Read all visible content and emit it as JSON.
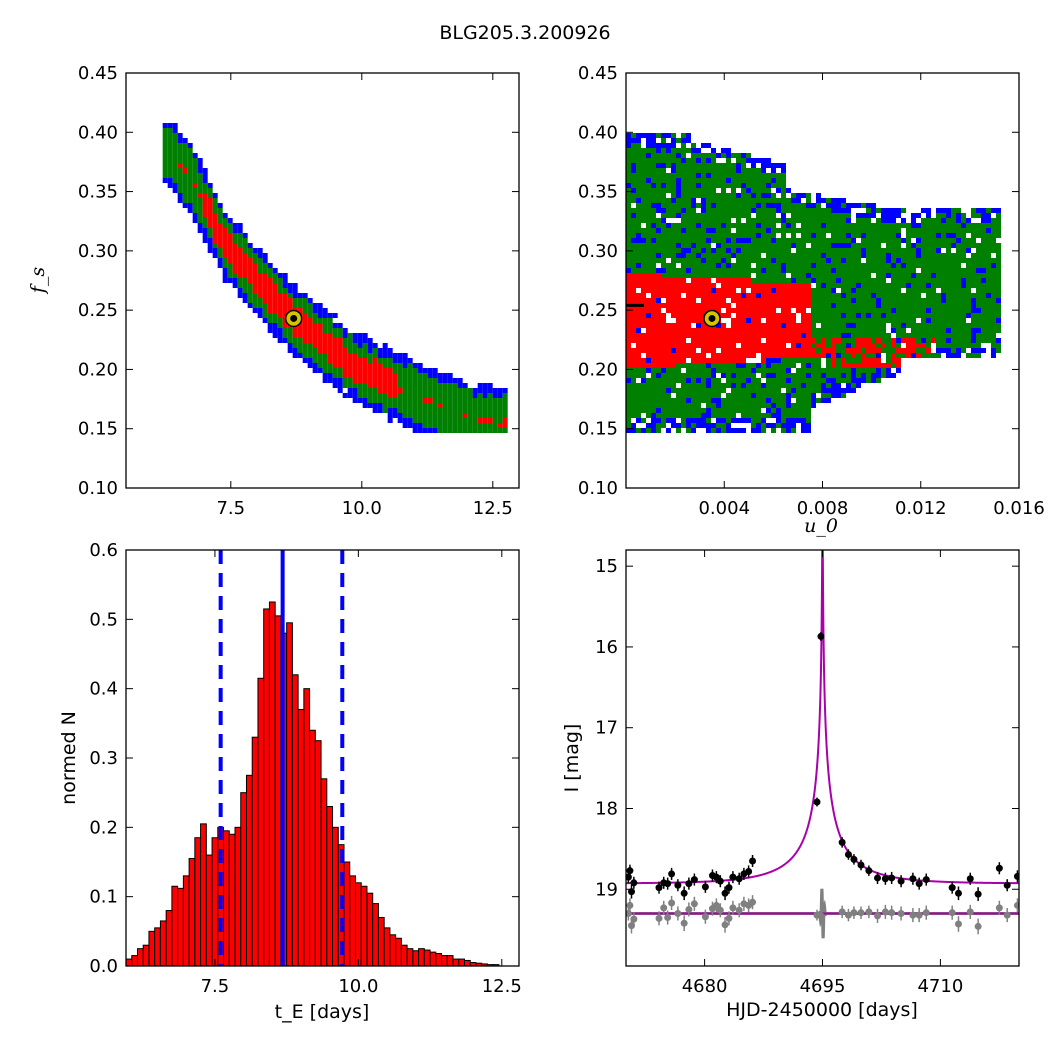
{
  "figure": {
    "title": "BLG205.3.200926"
  },
  "chart_data": [
    {
      "type": "heatmap",
      "panel": "top-left",
      "xlabel": "",
      "ylabel": "f_s",
      "xlim": [
        5.5,
        13.0
      ],
      "ylim": [
        0.1,
        0.45
      ],
      "xticks": [
        7.5,
        10.0,
        12.5
      ],
      "xtick_labels": [
        "7.5",
        "10.0",
        "12.5"
      ],
      "yticks": [
        0.1,
        0.15,
        0.2,
        0.25,
        0.3,
        0.35,
        0.4,
        0.45
      ],
      "ytick_labels": [
        "0.10",
        "0.15",
        "0.20",
        "0.25",
        "0.30",
        "0.35",
        "0.40",
        "0.45"
      ],
      "confidence_colors": {
        "1sigma": "#ff0000",
        "2sigma": "#008000",
        "3sigma": "#0000ff"
      },
      "ridge": [
        [
          6.3,
          0.385
        ],
        [
          6.8,
          0.355
        ],
        [
          7.3,
          0.31
        ],
        [
          7.8,
          0.285
        ],
        [
          8.3,
          0.26
        ],
        [
          8.7,
          0.243
        ],
        [
          9.2,
          0.225
        ],
        [
          9.8,
          0.205
        ],
        [
          10.5,
          0.19
        ],
        [
          11.2,
          0.175
        ],
        [
          12.0,
          0.162
        ],
        [
          12.6,
          0.157
        ]
      ],
      "best_fit": {
        "x": 8.7,
        "y": 0.243
      },
      "grid": false
    },
    {
      "type": "heatmap",
      "panel": "top-right",
      "xlabel": "u_0",
      "ylabel": "",
      "xlim": [
        0.0,
        0.016
      ],
      "ylim": [
        0.1,
        0.45
      ],
      "xticks": [
        0.004,
        0.008,
        0.012,
        0.016
      ],
      "xtick_labels": [
        "0.004",
        "0.008",
        "0.012",
        "0.016"
      ],
      "yticks": [
        0.1,
        0.15,
        0.2,
        0.25,
        0.3,
        0.35,
        0.4,
        0.45
      ],
      "ytick_labels": [
        "0.10",
        "0.15",
        "0.20",
        "0.25",
        "0.30",
        "0.35",
        "0.40",
        "0.45"
      ],
      "confidence_colors": {
        "1sigma": "#ff0000",
        "2sigma": "#008000",
        "3sigma": "#0000ff"
      },
      "best_fit": {
        "x": 0.0035,
        "y": 0.243
      },
      "grid": false
    },
    {
      "type": "bar",
      "panel": "bottom-left",
      "xlabel": "t_E [days]",
      "ylabel": "normed N",
      "xlim": [
        5.95,
        12.8
      ],
      "ylim": [
        0.0,
        0.6
      ],
      "xticks": [
        7.5,
        10.0,
        12.5
      ],
      "xtick_labels": [
        "7.5",
        "10.0",
        "12.5"
      ],
      "yticks": [
        0.0,
        0.1,
        0.2,
        0.3,
        0.4,
        0.5,
        0.6
      ],
      "ytick_labels": [
        "0.0",
        "0.1",
        "0.2",
        "0.3",
        "0.4",
        "0.5",
        "0.6"
      ],
      "bar_color": "#ff0000",
      "bin_start": 5.95,
      "bin_width": 0.1,
      "values": [
        0.01,
        0.015,
        0.025,
        0.03,
        0.05,
        0.055,
        0.065,
        0.08,
        0.115,
        0.112,
        0.13,
        0.155,
        0.185,
        0.205,
        0.16,
        0.185,
        0.2,
        0.195,
        0.19,
        0.2,
        0.25,
        0.275,
        0.33,
        0.415,
        0.515,
        0.525,
        0.505,
        0.48,
        0.495,
        0.42,
        0.37,
        0.4,
        0.34,
        0.325,
        0.27,
        0.23,
        0.2,
        0.175,
        0.15,
        0.13,
        0.12,
        0.115,
        0.105,
        0.09,
        0.07,
        0.055,
        0.045,
        0.04,
        0.03,
        0.025,
        0.022,
        0.025,
        0.023,
        0.02,
        0.018,
        0.015,
        0.015,
        0.01,
        0.01,
        0.008,
        0.005,
        0.004,
        0.003,
        0.002,
        0.002
      ],
      "median": 8.68,
      "interval": [
        7.6,
        9.72
      ],
      "line_color": "#0000ff",
      "grid": false
    },
    {
      "type": "scatter",
      "panel": "bottom-right",
      "xlabel": "HJD-2450000 [days]",
      "ylabel": "I [mag]",
      "xlim": [
        4670.0,
        4720.0
      ],
      "ylim": [
        19.95,
        14.8
      ],
      "xticks": [
        4680,
        4695,
        4710
      ],
      "xtick_labels": [
        "4680",
        "4695",
        "4710"
      ],
      "yticks": [
        15,
        16,
        17,
        18,
        19
      ],
      "ytick_labels": [
        "15",
        "16",
        "17",
        "18",
        "19"
      ],
      "model": {
        "t0": 4695.0,
        "tE": 8.7,
        "u0": 0.0035,
        "fs": 0.243,
        "baseline": 18.93,
        "color": "#aa00aa"
      },
      "data": {
        "t": [
          4670.3,
          4670.5,
          4670.7,
          4671.0,
          4674.2,
          4674.8,
          4675.3,
          4675.8,
          4676.6,
          4677.4,
          4678.0,
          4678.7,
          4680.1,
          4681.0,
          4681.5,
          4682.0,
          4682.6,
          4683.1,
          4683.6,
          4684.4,
          4685.0,
          4685.6,
          4686.1,
          4694.3,
          4694.8,
          4697.5,
          4698.3,
          4699.0,
          4699.9,
          4700.9,
          4702.0,
          4703.0,
          4703.8,
          4705.0,
          4706.5,
          4707.3,
          4708.2,
          4711.5,
          4712.3,
          4713.8,
          4714.8,
          4717.5,
          4718.5,
          4719.8
        ],
        "mag": [
          18.85,
          18.77,
          19.03,
          18.92,
          18.98,
          18.92,
          18.93,
          18.81,
          18.95,
          19.05,
          18.93,
          18.88,
          18.97,
          18.83,
          18.85,
          18.9,
          19.05,
          18.98,
          18.85,
          18.87,
          18.81,
          18.78,
          18.65,
          17.92,
          15.87,
          18.42,
          18.57,
          18.63,
          18.7,
          18.77,
          18.86,
          18.87,
          18.86,
          18.9,
          18.87,
          18.93,
          18.88,
          18.98,
          19.05,
          18.87,
          19.06,
          18.74,
          18.95,
          18.84
        ],
        "err": [
          0.05,
          0.05,
          0.06,
          0.05,
          0.05,
          0.05,
          0.05,
          0.05,
          0.05,
          0.06,
          0.05,
          0.05,
          0.05,
          0.05,
          0.05,
          0.05,
          0.06,
          0.05,
          0.05,
          0.05,
          0.05,
          0.05,
          0.05,
          0.03,
          0.03,
          0.04,
          0.04,
          0.04,
          0.04,
          0.04,
          0.05,
          0.05,
          0.05,
          0.05,
          0.05,
          0.05,
          0.05,
          0.05,
          0.06,
          0.05,
          0.06,
          0.05,
          0.05,
          0.05
        ]
      },
      "residual_offset": 19.3,
      "residuals": [
        0.0,
        -0.1,
        0.15,
        0.07,
        0.06,
        -0.07,
        0.05,
        -0.13,
        0.0,
        0.12,
        -0.05,
        -0.12,
        0.04,
        -0.06,
        -0.1,
        -0.04,
        0.14,
        0.06,
        -0.07,
        -0.04,
        -0.12,
        -0.1,
        -0.14,
        0.02,
        0.03,
        -0.02,
        0.02,
        -0.01,
        -0.01,
        -0.02,
        0.03,
        -0.02,
        -0.01,
        0.0,
        0.02,
        0.02,
        -0.01,
        -0.01,
        0.13,
        -0.02,
        0.16,
        -0.07,
        0.02,
        -0.1
      ],
      "residual_color": "#808080",
      "grid": false
    }
  ]
}
